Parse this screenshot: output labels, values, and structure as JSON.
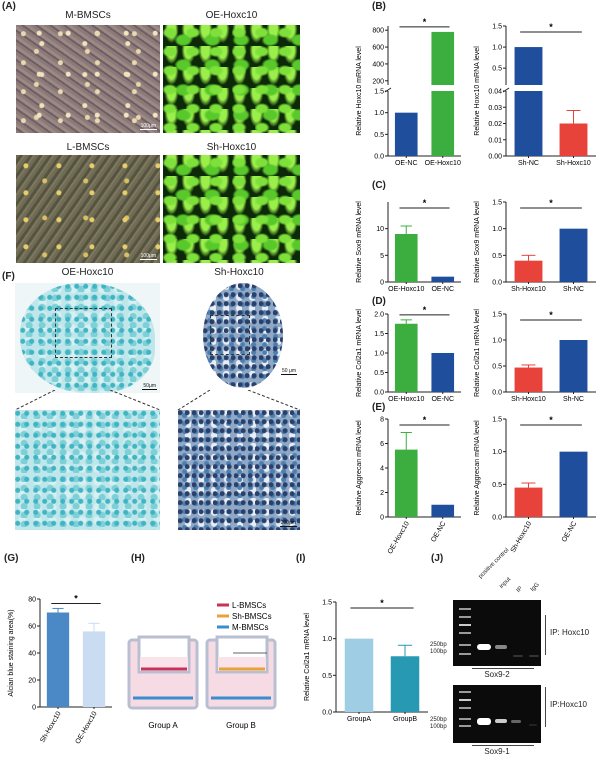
{
  "panel_labels": {
    "A": "(A)",
    "B": "(B)",
    "C": "(C)",
    "D": "(D)",
    "E": "(E)",
    "F": "(F)",
    "G": "(G)",
    "H": "(H)",
    "I": "(I)",
    "J": "(J)"
  },
  "panel_a": {
    "titles": [
      "M-BMSCs",
      "OE-Hoxc10",
      "L-BMSCs",
      "Sh-Hoxc10"
    ],
    "scale_bar": "100μm"
  },
  "panel_f": {
    "titles": [
      "OE-Hoxc10",
      "Sh-Hoxc10"
    ],
    "scale_bars": [
      "50μm",
      "50 μm",
      "200μm"
    ]
  },
  "panel_h": {
    "legend": [
      "L-BMSCs",
      "Sh-BMSCs",
      "M-BMSCs"
    ],
    "groups": [
      "Group A",
      "Group B"
    ],
    "colors": {
      "L-BMSCs": "#c8325a",
      "Sh-BMSCs": "#e8a23a",
      "M-BMSCs": "#3a8ed0"
    }
  },
  "panel_j": {
    "lanes": [
      "positive control",
      "input",
      "IP",
      "IgG"
    ],
    "markers": [
      "250bp",
      "100bp"
    ],
    "ip_label": "IP: Hoxc10",
    "ip_label_2": "IP:Hoxc10",
    "gels": [
      "Sox9-2",
      "Sox9-1"
    ]
  },
  "colors": {
    "green": "#3cae3f",
    "blue": "#1f4e9c",
    "red": "#e8433b",
    "g_dark": "#4a89c6",
    "g_light": "#c9dcf1",
    "i_light": "#9fcde3",
    "i_dark": "#2799b3"
  },
  "chart_data": [
    {
      "id": "B1",
      "type": "bar",
      "ylabel": "Relative Hoxc10 mRNA level",
      "categories": [
        "OE-NC",
        "OE-Hoxc10"
      ],
      "values": [
        1.0,
        780
      ],
      "errors": [
        0,
        0
      ],
      "colors": [
        "#1f4e9c",
        "#3cae3f"
      ],
      "broken_axis": true,
      "segments": [
        {
          "range": [
            0,
            1.5
          ],
          "ticks": [
            "0.0",
            "0.5",
            "1.0",
            "1.5"
          ]
        },
        {
          "range": [
            150,
            850
          ],
          "ticks": [
            "200",
            "400",
            "600",
            "800"
          ]
        }
      ],
      "significance": "*"
    },
    {
      "id": "B2",
      "type": "bar",
      "ylabel": "Relative Hoxc10 mRNA level",
      "categories": [
        "Sh-NC",
        "Sh-Hoxc10"
      ],
      "values": [
        1.0,
        0.02
      ],
      "errors": [
        0,
        0.008
      ],
      "colors": [
        "#1f4e9c",
        "#e8433b"
      ],
      "broken_axis": true,
      "segments": [
        {
          "range": [
            0,
            0.04
          ],
          "ticks": [
            "0.00",
            "0.01",
            "0.02",
            "0.03",
            "0.04"
          ]
        },
        {
          "range": [
            0.1,
            1.5
          ],
          "ticks": [
            "0.5",
            "1.0",
            "1.5"
          ]
        }
      ],
      "significance": "*"
    },
    {
      "id": "C1",
      "type": "bar",
      "ylabel": "Relative Sox9 mRNA level",
      "categories": [
        "OE-Hoxc10",
        "OE-NC"
      ],
      "values": [
        9.0,
        1.0
      ],
      "errors": [
        1.5,
        0
      ],
      "colors": [
        "#3cae3f",
        "#1f4e9c"
      ],
      "ylim": [
        0,
        15
      ],
      "yticks": [
        "0",
        "5",
        "10"
      ],
      "significance": "*"
    },
    {
      "id": "C2",
      "type": "bar",
      "ylabel": "Relative Sox9 mRNA level",
      "categories": [
        "Sh-Hoxc10",
        "Sh-NC"
      ],
      "values": [
        0.4,
        1.0
      ],
      "errors": [
        0.1,
        0
      ],
      "colors": [
        "#e8433b",
        "#1f4e9c"
      ],
      "ylim": [
        0,
        1.5
      ],
      "yticks": [
        "0.0",
        "0.5",
        "1.0",
        "1.5"
      ],
      "significance": "*"
    },
    {
      "id": "D1",
      "type": "bar",
      "ylabel": "Relative Col2a1 mRNA level",
      "categories": [
        "OE-Hoxc10",
        "OE-NC"
      ],
      "values": [
        1.75,
        1.0
      ],
      "errors": [
        0.1,
        0
      ],
      "colors": [
        "#3cae3f",
        "#1f4e9c"
      ],
      "ylim": [
        0,
        2.0
      ],
      "yticks": [
        "0.0",
        "0.5",
        "1.0",
        "1.5",
        "2.0"
      ],
      "significance": "*"
    },
    {
      "id": "D2",
      "type": "bar",
      "ylabel": "Relative Col2a1 mRNA level",
      "categories": [
        "Sh-Hoxc10",
        "Sh-NC"
      ],
      "values": [
        0.47,
        1.0
      ],
      "errors": [
        0.05,
        0
      ],
      "colors": [
        "#e8433b",
        "#1f4e9c"
      ],
      "ylim": [
        0,
        1.5
      ],
      "yticks": [
        "0.0",
        "0.5",
        "1.0",
        "1.5"
      ],
      "significance": "*"
    },
    {
      "id": "E1",
      "type": "bar",
      "ylabel": "Relative Aggrecan mRNA level",
      "categories": [
        "OE-Hoxc10",
        "OE-NC"
      ],
      "values": [
        5.5,
        1.0
      ],
      "errors": [
        1.4,
        0
      ],
      "colors": [
        "#3cae3f",
        "#1f4e9c"
      ],
      "ylim": [
        0,
        8
      ],
      "yticks": [
        "0",
        "2",
        "4",
        "6",
        "8"
      ],
      "significance": "*",
      "rotate_labels": true
    },
    {
      "id": "E2",
      "type": "bar",
      "ylabel": "Relative Aggrecan mRNA level",
      "categories": [
        "Sh-Hoxc10",
        "OE-NC"
      ],
      "values": [
        0.45,
        1.0
      ],
      "errors": [
        0.07,
        0
      ],
      "colors": [
        "#e8433b",
        "#1f4e9c"
      ],
      "ylim": [
        0,
        1.5
      ],
      "yticks": [
        "0.0",
        "0.5",
        "1.0",
        "1.5"
      ],
      "significance": "*",
      "rotate_labels": true
    },
    {
      "id": "G",
      "type": "bar",
      "ylabel": "Alcian blue staining area(%)",
      "categories": [
        "Sh-Hoxc10",
        "OE-Hoxc10"
      ],
      "values": [
        70,
        56
      ],
      "errors": [
        3,
        6
      ],
      "colors": [
        "#4a89c6",
        "#c9dcf1"
      ],
      "ylim": [
        0,
        80
      ],
      "yticks": [
        "0",
        "20",
        "40",
        "60",
        "80"
      ],
      "significance": "*",
      "rotate_labels": true
    },
    {
      "id": "I",
      "type": "bar",
      "ylabel": "Relative Col2a1 mRNA level",
      "categories": [
        "GroupA",
        "GroupB"
      ],
      "values": [
        1.0,
        0.76
      ],
      "errors": [
        0,
        0.15
      ],
      "colors": [
        "#9fcde3",
        "#2799b3"
      ],
      "ylim": [
        0,
        1.5
      ],
      "yticks": [
        "0.0",
        "0.5",
        "1.0",
        "1.5"
      ],
      "significance": "*"
    }
  ]
}
